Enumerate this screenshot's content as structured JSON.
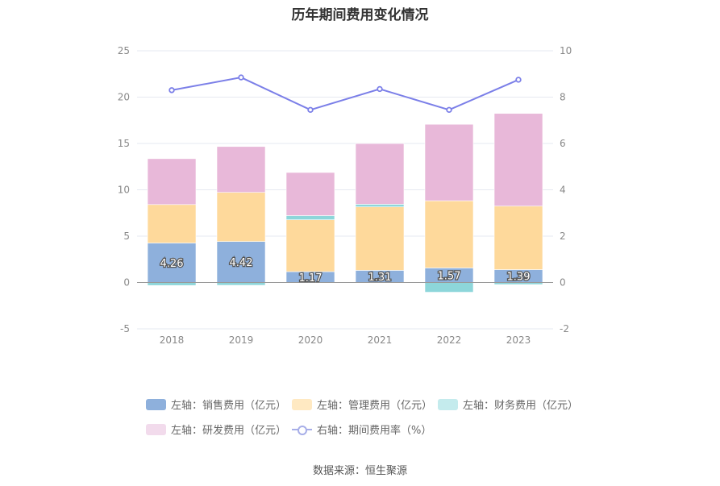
{
  "chart_data": {
    "type": "bar",
    "title": "历年期间费用变化情况",
    "categories": [
      "2018",
      "2019",
      "2020",
      "2021",
      "2022",
      "2023"
    ],
    "left_axis": {
      "min": -5,
      "max": 25,
      "ticks": [
        -5,
        0,
        5,
        10,
        15,
        20,
        25
      ]
    },
    "right_axis": {
      "min": -2,
      "max": 10,
      "ticks": [
        -2,
        0,
        2,
        4,
        6,
        8,
        10
      ]
    },
    "series": [
      {
        "name": "左轴：销售费用（亿元）",
        "kind": "bar",
        "axis": "left",
        "color": "#8eb0dc",
        "values": [
          4.26,
          4.42,
          1.17,
          1.31,
          1.57,
          1.39
        ],
        "show_labels": true
      },
      {
        "name": "左轴：管理费用（亿元）",
        "kind": "bar",
        "axis": "left",
        "color": "#fed99b",
        "values": [
          4.15,
          5.3,
          5.6,
          6.85,
          7.25,
          6.85
        ]
      },
      {
        "name": "左轴：财务费用（亿元）",
        "kind": "bar",
        "axis": "left",
        "color": "#8dd6da",
        "values": [
          -0.32,
          -0.3,
          0.45,
          0.28,
          -1.05,
          -0.22
        ]
      },
      {
        "name": "左轴：研发费用（亿元）",
        "kind": "bar",
        "axis": "left",
        "color": "#e8b8d9",
        "values": [
          4.95,
          4.95,
          4.65,
          6.55,
          8.25,
          10.0
        ]
      },
      {
        "name": "右轴：期间费用率（%）",
        "kind": "line",
        "axis": "right",
        "color": "#7b7fe8",
        "values": [
          8.3,
          8.85,
          7.45,
          8.35,
          7.45,
          8.75
        ]
      }
    ],
    "legend": {
      "placement": "bottom",
      "items": [
        {
          "label": "左轴：销售费用（亿元）",
          "color": "#8eb0dc",
          "marker": "rect"
        },
        {
          "label": "左轴：管理费用（亿元）",
          "color": "#ffe9c2",
          "marker": "rect"
        },
        {
          "label": "左轴：财务费用（亿元）",
          "color": "#c4ebed",
          "marker": "rect"
        },
        {
          "label": "左轴：研发费用（亿元）",
          "color": "#f2dbec",
          "marker": "rect"
        },
        {
          "label": "右轴：期间费用率（%）",
          "color": "#a7aee8",
          "marker": "line"
        }
      ]
    },
    "grid": true
  },
  "source_text": "数据来源：恒生聚源"
}
